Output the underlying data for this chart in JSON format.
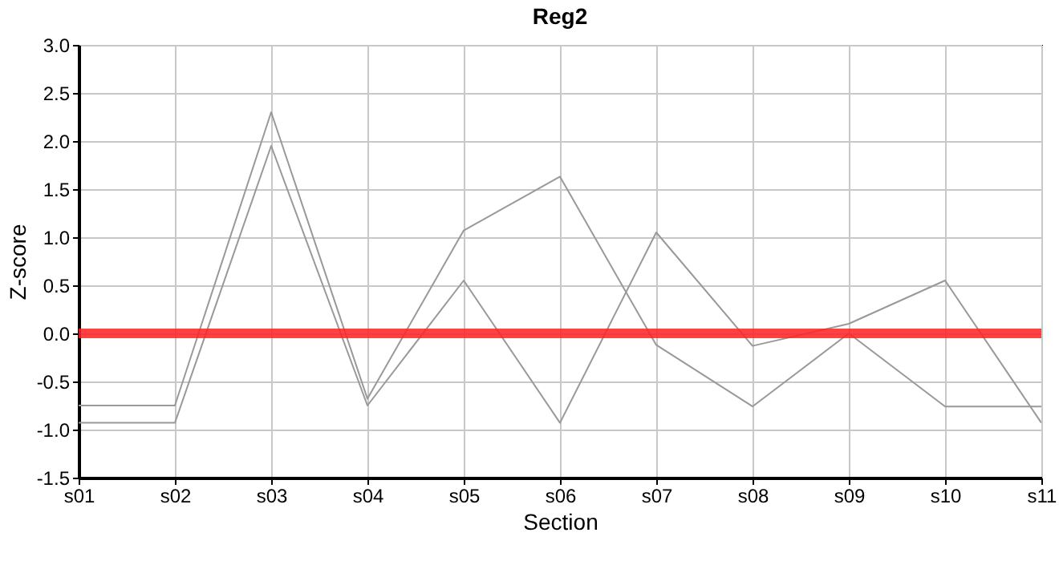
{
  "chart_data": {
    "type": "line",
    "title": "Reg2",
    "xlabel": "Section",
    "ylabel": "Z-score",
    "categories": [
      "s01",
      "s02",
      "s03",
      "s04",
      "s05",
      "s06",
      "s07",
      "s08",
      "s09",
      "s10",
      "s11"
    ],
    "series": [
      {
        "color": "#999999",
        "values": [
          -0.75,
          -0.75,
          2.3,
          -0.68,
          1.07,
          1.63,
          -0.12,
          -0.76,
          0.0,
          -0.76,
          -0.76
        ]
      },
      {
        "color": "#999999",
        "values": [
          -0.93,
          -0.93,
          1.95,
          -0.75,
          0.55,
          -0.93,
          1.05,
          -0.13,
          0.1,
          0.55,
          -0.93
        ]
      }
    ],
    "ylim": [
      -1.5,
      3.0
    ],
    "yticks": [
      {
        "value": -1.5,
        "label": "-1.5"
      },
      {
        "value": -1.0,
        "label": "-1.0"
      },
      {
        "value": -0.5,
        "label": "-0.5"
      },
      {
        "value": 0.0,
        "label": "0.0"
      },
      {
        "value": 0.5,
        "label": "0.5"
      },
      {
        "value": 1.0,
        "label": "1.0"
      },
      {
        "value": 1.5,
        "label": "1.5"
      },
      {
        "value": 2.0,
        "label": "2.0"
      },
      {
        "value": 2.5,
        "label": "2.5"
      },
      {
        "value": 3.0,
        "label": "3.0"
      }
    ],
    "ref_lines": [
      {
        "axis": "y",
        "value": 0,
        "color": "#ff2020"
      }
    ],
    "grid": true,
    "legend": false,
    "marker": "none",
    "line_style": "solid"
  }
}
